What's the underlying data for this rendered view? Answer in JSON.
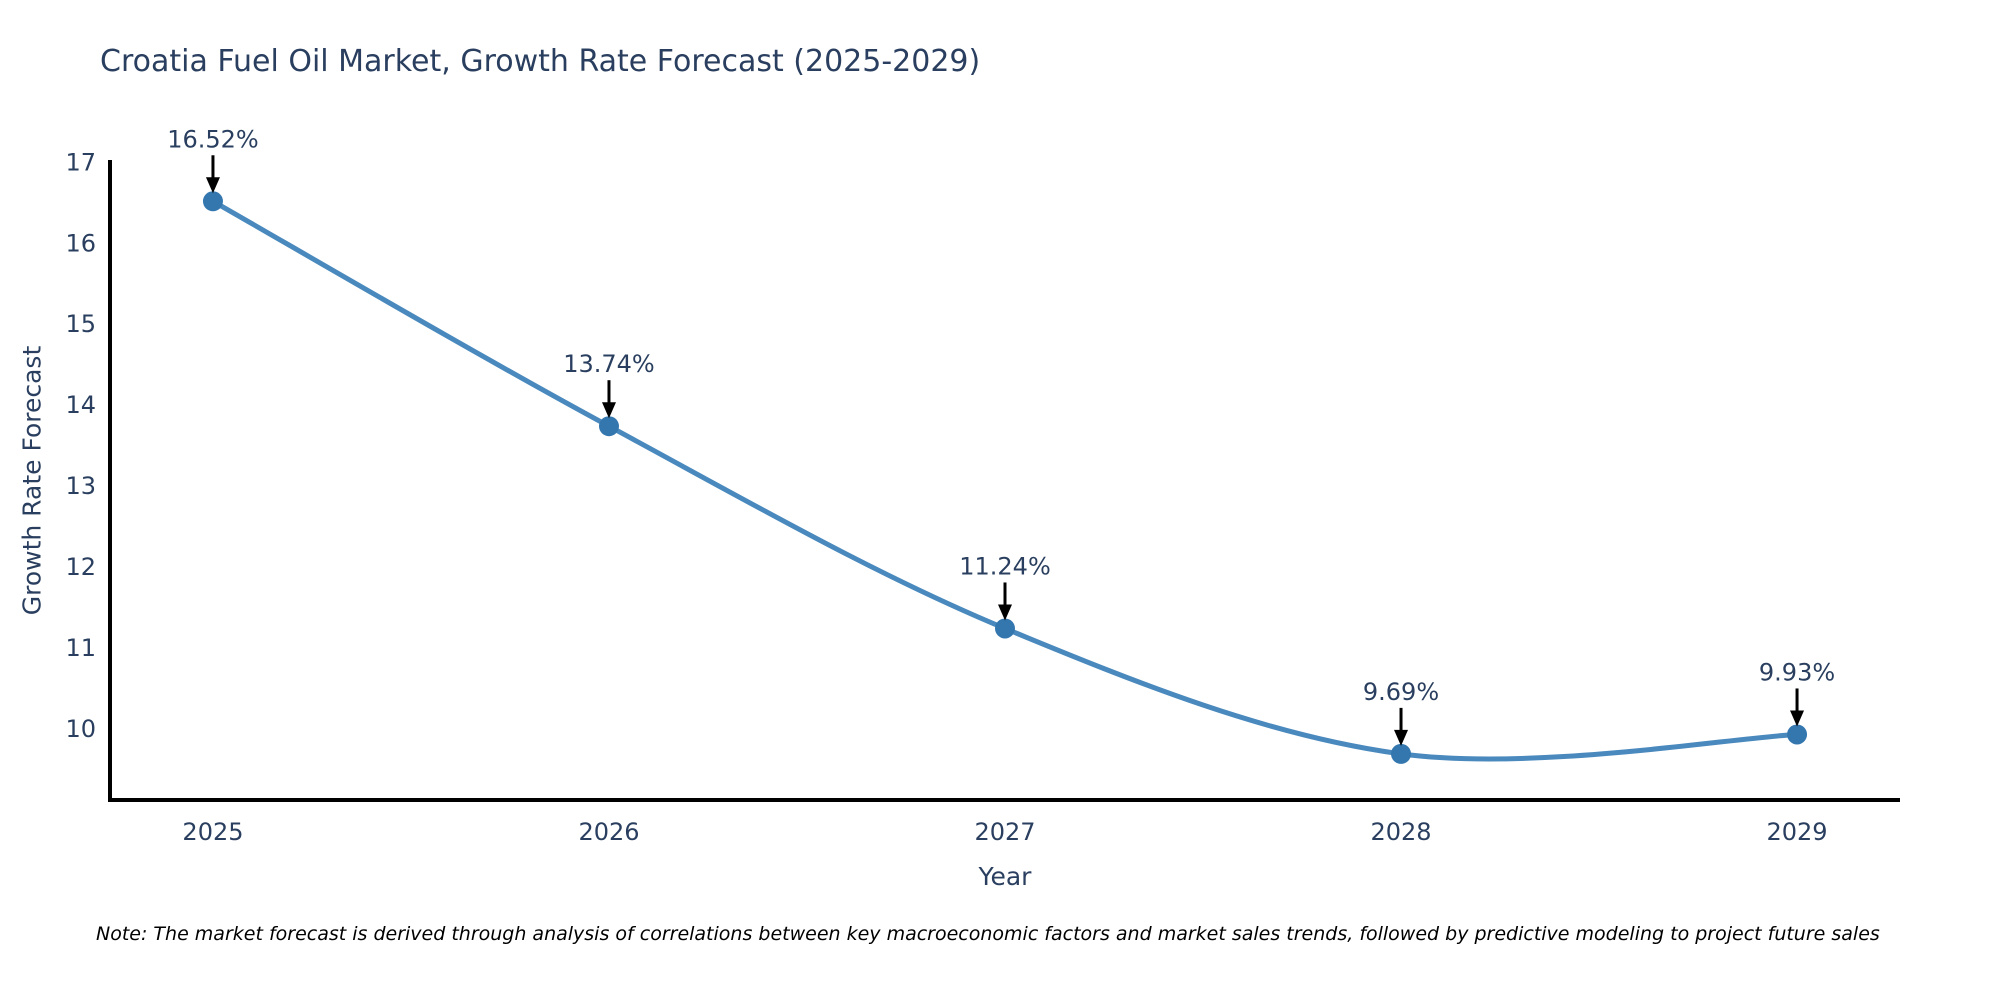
{
  "page": {
    "background": "#ffffff"
  },
  "chart_data": {
    "type": "line",
    "title": "Croatia Fuel Oil Market, Growth Rate Forecast (2025-2029)",
    "xlabel": "Year",
    "ylabel": "Growth Rate Forecast",
    "x": [
      2025,
      2026,
      2027,
      2028,
      2029
    ],
    "y": [
      16.52,
      13.74,
      11.24,
      9.69,
      9.93
    ],
    "point_labels": [
      "16.52%",
      "13.74%",
      "11.24%",
      "9.69%",
      "9.93%"
    ],
    "series_name": "Growth Rate Forecast",
    "line_shape": "spline",
    "grid": false,
    "legend_position": "none",
    "xticks": [
      2025,
      2026,
      2027,
      2028,
      2029
    ],
    "yticks": [
      10,
      11,
      12,
      13,
      14,
      15,
      16,
      17
    ],
    "xlim": [
      2024.74,
      2029.26
    ],
    "ylim": [
      9.12,
      17.03
    ],
    "note": "Note: The market forecast is derived through analysis of correlations between key macroeconomic factors and market sales trends, followed by predictive modeling to project future sales",
    "colors": {
      "line": "#4a89bd",
      "marker": "#3477af",
      "axis": "#000000",
      "tick_text": "#2a3f5f",
      "title_text": "#2a3f5f",
      "annotation_text": "#2a3f5f",
      "annotation_arrow": "#000000",
      "note_text": "#000000",
      "background": "#ffffff"
    }
  }
}
